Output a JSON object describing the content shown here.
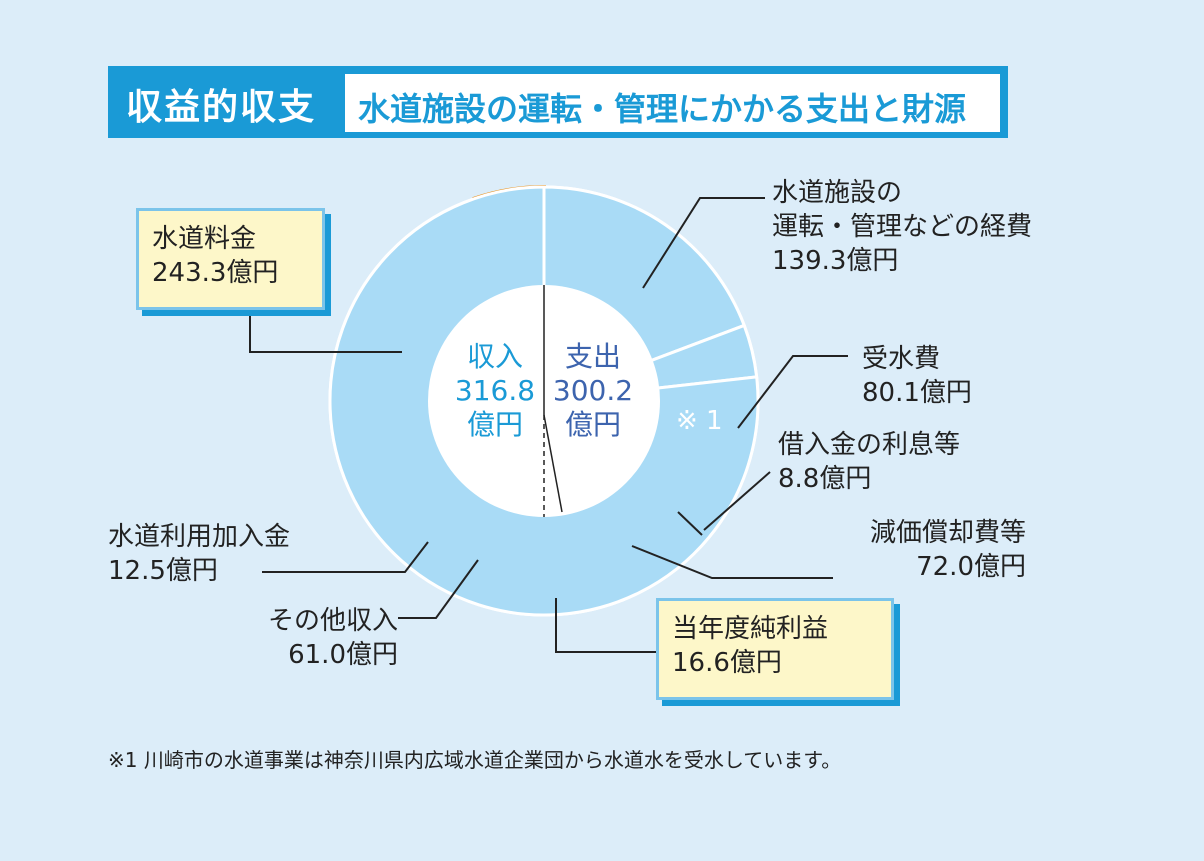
{
  "header": {
    "main_title": "収益的収支",
    "sub_title": "水道施設の運転・管理にかかる支出と財源"
  },
  "center": {
    "income_label": "収入",
    "income_value": "316.8",
    "income_unit": "億円",
    "expense_label": "支出",
    "expense_value": "300.2",
    "expense_unit": "億円"
  },
  "note_marker": "※ 1",
  "footnote": "※1 川崎市の水道事業は神奈川県内広域水道企業団から水道水を受水しています。",
  "colors": {
    "expense": "#3d64ae",
    "income": "#a9dbf6",
    "profit_border": "#e8921e",
    "accent": "#1a9ad6"
  },
  "chart_data": {
    "type": "pie",
    "unit": "億円",
    "income": {
      "label": "収入",
      "total": 316.8,
      "slices": [
        {
          "name": "水道料金",
          "value": 243.3,
          "label": "243.3億円"
        },
        {
          "name": "水道利用加入金",
          "value": 12.5,
          "label": "12.5億円"
        },
        {
          "name": "その他収入",
          "value": 61.0,
          "label": "61.0億円"
        }
      ]
    },
    "expense": {
      "label": "支出",
      "total": 300.2,
      "slices": [
        {
          "name_line1": "水道施設の",
          "name_line2": "運転・管理などの経費",
          "value": 139.3,
          "label": "139.3億円"
        },
        {
          "name": "受水費",
          "value": 80.1,
          "label": "80.1億円"
        },
        {
          "name": "借入金の利息等",
          "value": 8.8,
          "label": "8.8億円"
        },
        {
          "name": "減価償却費等",
          "value": 72.0,
          "label": "72.0億円"
        }
      ]
    },
    "net_profit": {
      "name": "当年度純利益",
      "value": 16.6,
      "label": "16.6億円"
    }
  }
}
